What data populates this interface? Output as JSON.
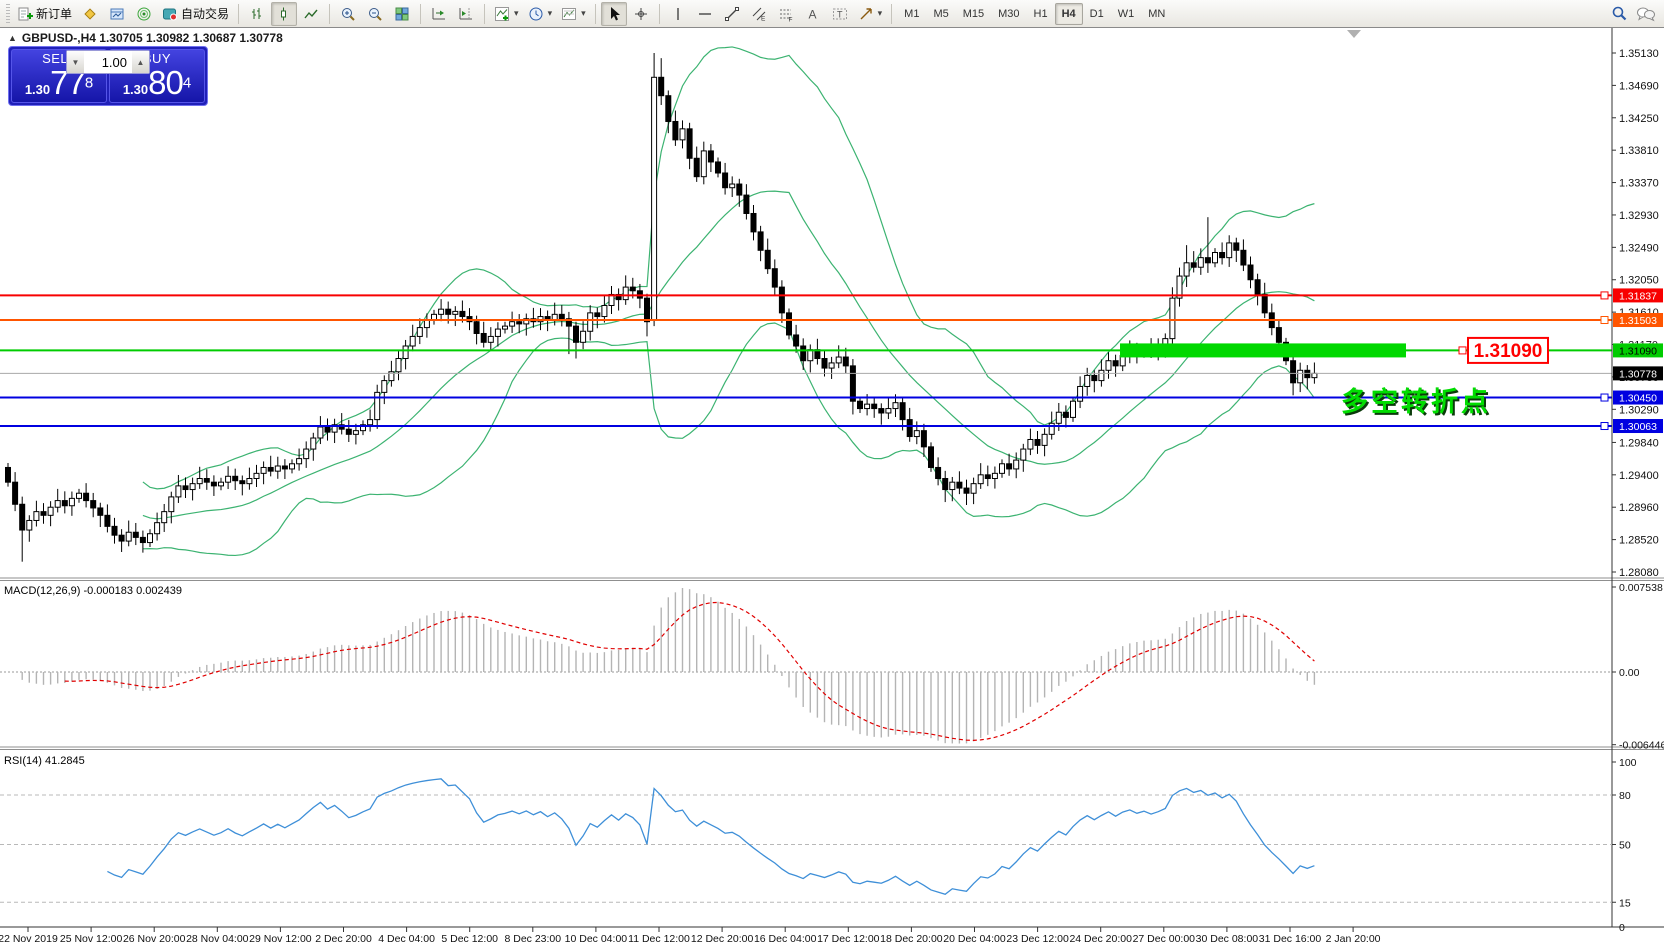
{
  "toolbar": {
    "new_order_label": "新订单",
    "autotrade_label": "自动交易",
    "timeframes": [
      "M1",
      "M5",
      "M15",
      "M30",
      "H1",
      "H4",
      "D1",
      "W1",
      "MN"
    ],
    "active_timeframe": "H4"
  },
  "chart": {
    "symbol": "GBPUSD-",
    "timeframe": "H4",
    "title_full": "GBPUSD-,H4  1.30705 1.30982 1.30687 1.30778"
  },
  "trade_panel": {
    "sell_label": "SELL",
    "buy_label": "BUY",
    "volume": "1.00",
    "sell_price_prefix": "1.30",
    "sell_price_big": "77",
    "sell_price_sup": "8",
    "buy_price_prefix": "1.30",
    "buy_price_big": "80",
    "buy_price_sup": "4"
  },
  "annotations": {
    "turning_point_text": "多空转折点",
    "price_flag_label": "1.31090",
    "highlight_color": "#00d800",
    "flag_color": "#ff0000"
  },
  "levels": [
    {
      "label": "1.31837",
      "price": 1.31837,
      "color": "#f80000",
      "text": "#ffffff",
      "w": 2,
      "type": "hline"
    },
    {
      "label": "1.31503",
      "price": 1.31503,
      "color": "#ff5500",
      "text": "#ffffff",
      "w": 2,
      "type": "hline"
    },
    {
      "label": "1.31090",
      "price": 1.3109,
      "color": "#00cc00",
      "text": "#000000",
      "w": 2,
      "type": "hline"
    },
    {
      "label": "1.30778",
      "price": 1.30778,
      "color": "#000000",
      "text": "#ffffff",
      "w": 1,
      "type": "bid"
    },
    {
      "label": "1.30450",
      "price": 1.3045,
      "color": "#0000e0",
      "text": "#ffffff",
      "w": 2,
      "type": "hline"
    },
    {
      "label": "1.30063",
      "price": 1.30063,
      "color": "#0000e0",
      "text": "#ffffff",
      "w": 2,
      "type": "hline"
    }
  ],
  "price_axis": {
    "ticks": [
      "1.35130",
      "1.34690",
      "1.34250",
      "1.33810",
      "1.33370",
      "1.32930",
      "1.32490",
      "1.32050",
      "1.31610",
      "1.31170",
      "1.30730",
      "1.30290",
      "1.29840",
      "1.29400",
      "1.28960",
      "1.28520",
      "1.28080"
    ]
  },
  "time_axis": [
    "22 Nov 2019",
    "25 Nov 12:00",
    "26 Nov 20:00",
    "28 Nov 04:00",
    "29 Nov 12:00",
    "2 Dec 20:00",
    "4 Dec 04:00",
    "5 Dec 12:00",
    "8 Dec 23:00",
    "10 Dec 04:00",
    "11 Dec 12:00",
    "12 Dec 20:00",
    "16 Dec 04:00",
    "17 Dec 12:00",
    "18 Dec 20:00",
    "20 Dec 04:00",
    "23 Dec 12:00",
    "24 Dec 20:00",
    "27 Dec 00:00",
    "30 Dec 08:00",
    "31 Dec 16:00",
    "2 Jan 20:00"
  ],
  "macd_panel": {
    "label": "MACD(12,26,9) -0.000183 0.002439",
    "ticks": [
      {
        "label": "0.007538",
        "v": 0.007538
      },
      {
        "label": "0.00",
        "v": 0
      },
      {
        "label": "-0.006446",
        "v": -0.006446
      }
    ]
  },
  "rsi_panel": {
    "label": "RSI(14) 41.2845",
    "ticks": [
      100,
      80,
      50,
      15,
      0
    ],
    "levels": [
      80,
      50,
      15
    ]
  },
  "chart_data": {
    "type": "candlestick",
    "symbol": "GBPUSD-",
    "timeframe": "H4",
    "ohlc_current": {
      "open": "1.30705",
      "high": "1.30982",
      "low": "1.30687",
      "close": "1.30778"
    },
    "bid": 1.30778,
    "ylim": [
      1.2808,
      1.3513
    ],
    "closes": [
      1.293,
      1.29,
      1.2865,
      1.2878,
      1.289,
      1.2885,
      1.2896,
      1.2905,
      1.2898,
      1.2908,
      1.2915,
      1.2905,
      1.2895,
      1.2885,
      1.287,
      1.2858,
      1.285,
      1.2862,
      1.2855,
      1.2848,
      1.286,
      1.2875,
      1.289,
      1.291,
      1.2925,
      1.292,
      1.2928,
      1.2935,
      1.293,
      1.2925,
      1.293,
      1.2938,
      1.2932,
      1.2928,
      1.2935,
      1.2942,
      1.295,
      1.2945,
      1.2952,
      1.2948,
      1.2955,
      1.2962,
      1.2975,
      1.299,
      1.3005,
      1.2998,
      1.3008,
      1.3002,
      1.2995,
      1.3,
      1.3008,
      1.3015,
      1.3052,
      1.3068,
      1.308,
      1.3098,
      1.3115,
      1.3128,
      1.314,
      1.315,
      1.3158,
      1.3165,
      1.3158,
      1.3162,
      1.3155,
      1.3148,
      1.3132,
      1.312,
      1.3128,
      1.3138,
      1.3142,
      1.3148,
      1.3145,
      1.3152,
      1.3148,
      1.3155,
      1.315,
      1.3158,
      1.3152,
      1.3142,
      1.312,
      1.3135,
      1.316,
      1.3155,
      1.317,
      1.3185,
      1.3178,
      1.3195,
      1.319,
      1.318,
      1.3148,
      1.348,
      1.3455,
      1.342,
      1.3395,
      1.341,
      1.337,
      1.3345,
      1.338,
      1.3365,
      1.335,
      1.333,
      1.3335,
      1.332,
      1.3295,
      1.327,
      1.3245,
      1.322,
      1.3195,
      1.316,
      1.313,
      1.3115,
      1.3095,
      1.311,
      1.3098,
      1.3085,
      1.3092,
      1.31,
      1.3088,
      1.304,
      1.303,
      1.3036,
      1.303,
      1.3024,
      1.303,
      1.3038,
      1.3015,
      1.2992,
      1.3,
      1.2978,
      1.295,
      1.2935,
      1.292,
      1.293,
      1.2922,
      1.2915,
      1.2928,
      1.294,
      1.2935,
      1.2942,
      1.2955,
      1.2948,
      1.296,
      1.2975,
      1.2988,
      1.298,
      1.2995,
      1.301,
      1.3025,
      1.3018,
      1.304,
      1.306,
      1.3075,
      1.3068,
      1.3082,
      1.3095,
      1.3088,
      1.3102,
      1.311,
      1.3105,
      1.3112,
      1.3108,
      1.3115,
      1.3125,
      1.318,
      1.321,
      1.3228,
      1.3222,
      1.3235,
      1.3228,
      1.3242,
      1.3235,
      1.3255,
      1.3245,
      1.3225,
      1.3205,
      1.3185,
      1.316,
      1.314,
      1.312,
      1.3095,
      1.3065,
      1.3082,
      1.3072,
      1.30778
    ],
    "special_candles": [
      {
        "i": 2,
        "l": 1.2822
      },
      {
        "i": 79,
        "l": 1.3104
      },
      {
        "i": 80,
        "l": 1.3098
      },
      {
        "i": 90,
        "l": 1.3128
      },
      {
        "i": 91,
        "o": 1.315,
        "h": 1.3513,
        "l": 1.3142
      },
      {
        "i": 92,
        "h": 1.3506
      },
      {
        "i": 119,
        "l": 1.3022
      },
      {
        "i": 132,
        "l": 1.2903
      },
      {
        "i": 135,
        "l": 1.2899
      },
      {
        "i": 166,
        "h": 1.3252
      },
      {
        "i": 169,
        "h": 1.329
      },
      {
        "i": 181,
        "l": 1.3048
      }
    ],
    "indicators": {
      "bollinger": {
        "period": 20,
        "deviation": 2,
        "color": "#3CB371"
      },
      "macd": {
        "fast": 12,
        "slow": 26,
        "signal": 9,
        "histogram_color": "#b4b4b4",
        "signal_color": "#e00000"
      },
      "rsi": {
        "period": 14,
        "value": 41.2845,
        "color": "#3e8fd8",
        "levels": [
          80,
          50,
          15
        ]
      }
    },
    "candle_colors": {
      "up_fill": "#ffffff",
      "down_fill": "#000000",
      "outline": "#000000"
    }
  }
}
